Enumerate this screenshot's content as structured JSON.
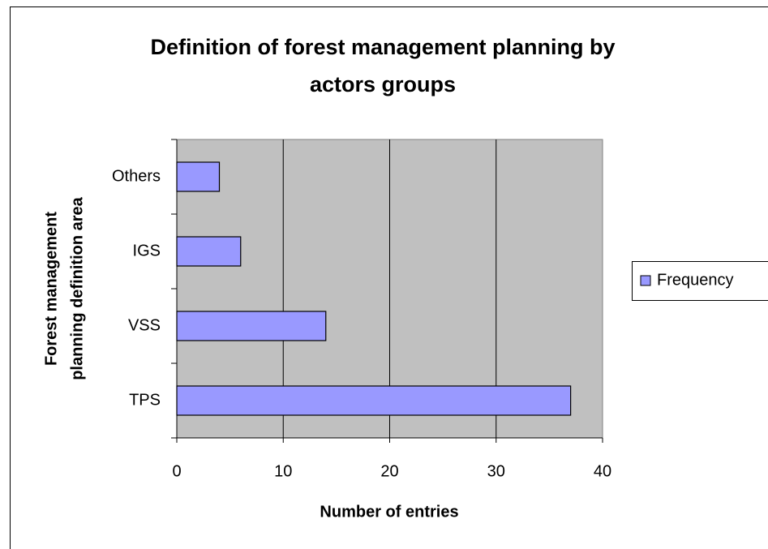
{
  "chart_data": {
    "type": "hbar",
    "title": [
      "Definition of forest management planning by",
      "actors groups"
    ],
    "x_label": "Number of entries",
    "y_label": [
      "Forest management",
      "planning definition area"
    ],
    "categories": [
      "TPS",
      "VSS",
      "IGS",
      "Others"
    ],
    "series": [
      {
        "name": "Frequency",
        "color": "#9999ff",
        "values": [
          37,
          14,
          6,
          4
        ]
      }
    ],
    "xlim": [
      0,
      40
    ],
    "xticks": [
      0,
      10,
      20,
      30,
      40
    ],
    "grid": true,
    "legend": "right"
  }
}
